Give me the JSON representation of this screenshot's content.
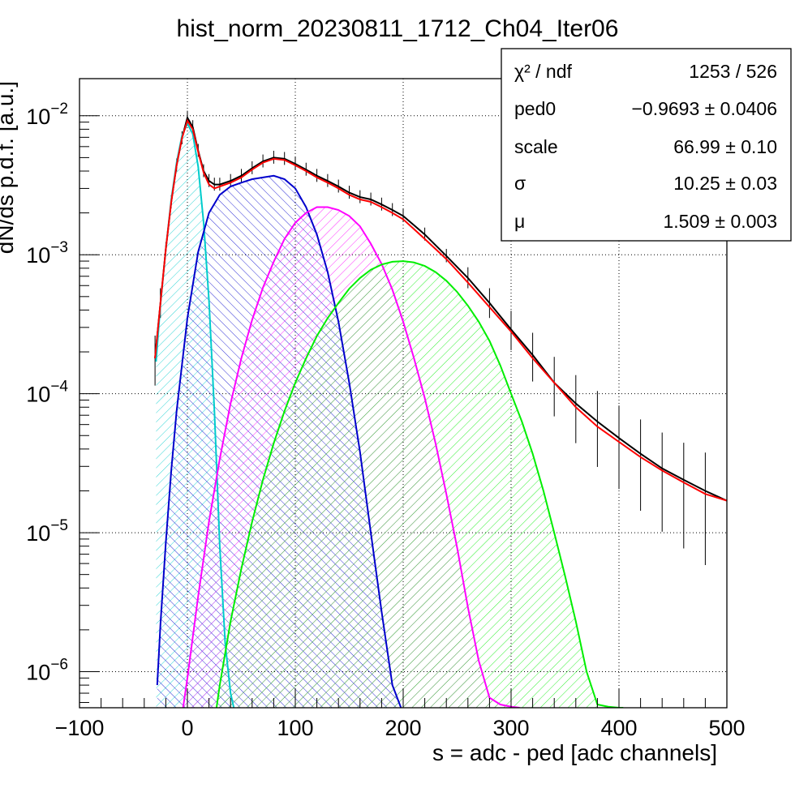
{
  "chart_data": {
    "type": "line",
    "title": "hist_norm_20230811_1712_Ch04_Iter06",
    "xlabel": "s = adc - ped [adc channels]",
    "ylabel": "dN/ds p.d.f. [a.u.]",
    "xlim": [
      -100,
      500
    ],
    "ylim": [
      5.5e-07,
      0.0185
    ],
    "yscale": "log",
    "grid": true,
    "x_ticks": [
      {
        "value": -100,
        "label": "−100"
      },
      {
        "value": 0,
        "label": "0"
      },
      {
        "value": 100,
        "label": "100"
      },
      {
        "value": 200,
        "label": "200"
      },
      {
        "value": 300,
        "label": "300"
      },
      {
        "value": 400,
        "label": "400"
      },
      {
        "value": 500,
        "label": "500"
      }
    ],
    "y_ticks": [
      {
        "value": 1e-06,
        "base": "10",
        "exp": "−6"
      },
      {
        "value": 1e-05,
        "base": "10",
        "exp": "−5"
      },
      {
        "value": 0.0001,
        "base": "10",
        "exp": "−4"
      },
      {
        "value": 0.001,
        "base": "10",
        "exp": "−3"
      },
      {
        "value": 0.01,
        "base": "10",
        "exp": "−2"
      }
    ],
    "stats": {
      "rows": [
        {
          "name": "χ² / ndf",
          "value": "1253 / 526"
        },
        {
          "name": "ped0",
          "value": "−0.9693 ± 0.0406"
        },
        {
          "name": "scale",
          "value": "66.99 ± 0.10"
        },
        {
          "name": "σ",
          "value": "10.25 ± 0.03"
        },
        {
          "name": "μ",
          "value": "1.509 ± 0.003"
        }
      ]
    },
    "histogram": {
      "color": "#000000",
      "x": [
        -30,
        -25,
        -20,
        -15,
        -10,
        -5,
        0,
        5,
        10,
        15,
        20,
        25,
        30,
        40,
        50,
        60,
        70,
        80,
        90,
        100,
        110,
        120,
        130,
        140,
        150,
        160,
        170,
        180,
        190,
        200,
        220,
        240,
        260,
        280,
        300,
        320,
        340,
        360,
        380,
        400,
        420,
        440,
        460,
        480,
        500
      ],
      "y": [
        0.00018,
        0.00045,
        0.0011,
        0.0024,
        0.0044,
        0.0069,
        0.0097,
        0.0083,
        0.0056,
        0.004,
        0.0034,
        0.0032,
        0.0032,
        0.0034,
        0.0037,
        0.0042,
        0.0047,
        0.005,
        0.0049,
        0.0045,
        0.0041,
        0.0037,
        0.0034,
        0.0031,
        0.0028,
        0.0026,
        0.0025,
        0.0023,
        0.0021,
        0.0019,
        0.0014,
        0.00098,
        0.00068,
        0.00045,
        0.00029,
        0.00019,
        0.00012,
        8.5e-05,
        6.3e-05,
        4.8e-05,
        3.7e-05,
        2.9e-05,
        2.4e-05,
        2e-05,
        1.7e-05
      ]
    },
    "series": [
      {
        "color": "#ff0000",
        "x": [
          -30,
          -25,
          -20,
          -15,
          -10,
          -5,
          0,
          5,
          10,
          15,
          20,
          25,
          30,
          40,
          50,
          60,
          70,
          80,
          90,
          100,
          110,
          120,
          130,
          140,
          150,
          160,
          170,
          180,
          190,
          200,
          220,
          240,
          260,
          280,
          300,
          320,
          340,
          360,
          380,
          400,
          420,
          440,
          460,
          480,
          500
        ],
        "y": [
          0.00018,
          0.00045,
          0.0011,
          0.0024,
          0.0044,
          0.0069,
          0.0092,
          0.008,
          0.0055,
          0.0039,
          0.0032,
          0.003,
          0.0031,
          0.0033,
          0.0036,
          0.0041,
          0.0046,
          0.0049,
          0.0048,
          0.0044,
          0.004,
          0.0036,
          0.0033,
          0.003,
          0.0027,
          0.0025,
          0.0024,
          0.0022,
          0.002,
          0.0018,
          0.0013,
          0.00093,
          0.00063,
          0.00042,
          0.00028,
          0.00018,
          0.00012,
          8e-05,
          5.8e-05,
          4.5e-05,
          3.5e-05,
          2.8e-05,
          2.3e-05,
          1.9e-05,
          1.7e-05
        ]
      },
      {
        "color": "#00cccc",
        "x": [
          -29,
          -25,
          -20,
          -15,
          -10,
          -5,
          0,
          5,
          10,
          15,
          20,
          25,
          30,
          35,
          40,
          43
        ],
        "y": [
          0.00017,
          0.00044,
          0.0011,
          0.0025,
          0.0046,
          0.0072,
          0.0088,
          0.0074,
          0.0043,
          0.0017,
          0.00047,
          7.5e-05,
          8e-06,
          1.6e-06,
          7e-07,
          5.5e-07
        ]
      },
      {
        "color": "#0000cc",
        "x": [
          -28,
          -25,
          -20,
          -15,
          -10,
          0,
          10,
          20,
          30,
          40,
          50,
          60,
          70,
          80,
          90,
          100,
          110,
          120,
          130,
          140,
          150,
          160,
          170,
          180,
          190,
          198
        ],
        "y": [
          8e-07,
          2.2e-06,
          8.5e-06,
          2.8e-05,
          7.5e-05,
          0.00035,
          0.00105,
          0.002,
          0.0027,
          0.0031,
          0.0033,
          0.0035,
          0.0036,
          0.0037,
          0.0035,
          0.003,
          0.0022,
          0.0014,
          0.00075,
          0.00033,
          0.00012,
          3.8e-05,
          1e-05,
          2.7e-06,
          8e-07,
          5.5e-07
        ]
      },
      {
        "color": "#ff00ff",
        "x": [
          -4,
          0,
          10,
          20,
          30,
          40,
          50,
          60,
          70,
          80,
          90,
          100,
          110,
          120,
          130,
          140,
          150,
          160,
          170,
          180,
          190,
          200,
          210,
          220,
          230,
          240,
          250,
          260,
          270,
          280,
          290,
          300,
          308
        ],
        "y": [
          5.5e-07,
          9e-07,
          3.5e-06,
          1.2e-05,
          3.4e-05,
          8.5e-05,
          0.00018,
          0.00034,
          0.00058,
          0.00089,
          0.0013,
          0.0017,
          0.002,
          0.0022,
          0.0022,
          0.0021,
          0.0019,
          0.0016,
          0.0012,
          0.00086,
          0.00056,
          0.00033,
          0.00018,
          9.3e-05,
          4.4e-05,
          1.9e-05,
          7.8e-06,
          2.9e-06,
          1.2e-06,
          6.5e-07,
          5.8e-07,
          5.6e-07,
          5.5e-07
        ]
      },
      {
        "color": "#00ee00",
        "x": [
          27,
          30,
          40,
          50,
          60,
          70,
          80,
          90,
          100,
          110,
          120,
          130,
          140,
          150,
          160,
          170,
          180,
          190,
          200,
          210,
          220,
          230,
          240,
          250,
          260,
          270,
          280,
          290,
          300,
          310,
          320,
          330,
          340,
          350,
          360,
          370,
          380,
          390,
          400,
          404
        ],
        "y": [
          5.5e-07,
          8e-07,
          2.3e-06,
          5.5e-06,
          1.2e-05,
          2.4e-05,
          4.4e-05,
          7.5e-05,
          0.00012,
          0.00018,
          0.00026,
          0.00035,
          0.00045,
          0.00057,
          0.00068,
          0.00078,
          0.00085,
          0.00089,
          0.0009,
          0.00088,
          0.00083,
          0.00075,
          0.00065,
          0.00054,
          0.00043,
          0.00033,
          0.00024,
          0.00016,
          0.0001,
          6.3e-05,
          3.7e-05,
          2e-05,
          1e-05,
          4.9e-06,
          2.3e-06,
          1e-06,
          5.8e-07,
          5.6e-07,
          5.5e-07,
          5.5e-07
        ]
      }
    ]
  }
}
